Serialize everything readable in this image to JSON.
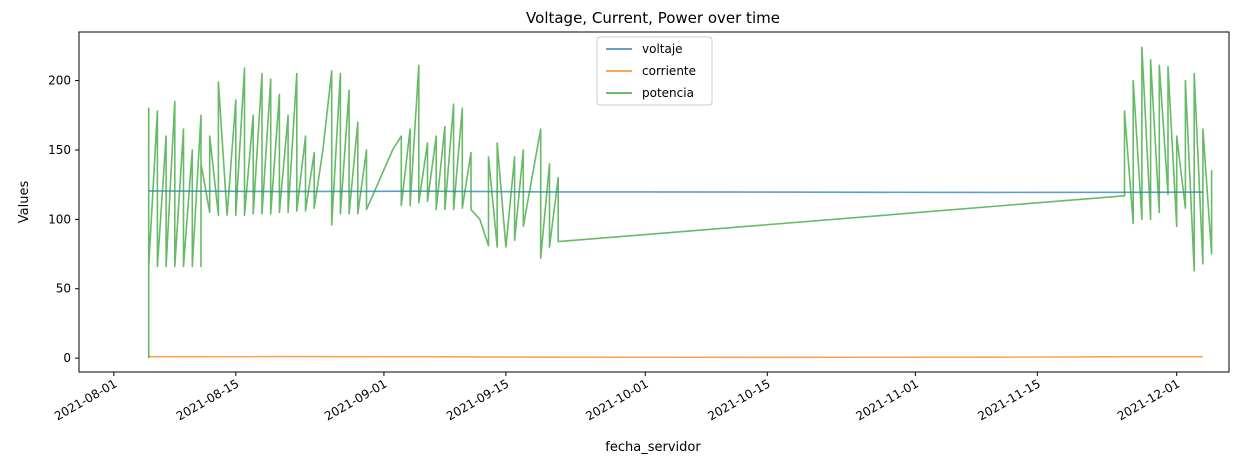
{
  "chart_data": {
    "type": "line",
    "title": "Voltage, Current, Power over time",
    "xlabel": "fecha_servidor",
    "ylabel": "Values",
    "xlim": [
      "2021-07-28",
      "2021-12-07"
    ],
    "ylim": [
      -10,
      235
    ],
    "x_ticks": [
      "2021-08-01",
      "2021-08-15",
      "2021-09-01",
      "2021-09-15",
      "2021-10-01",
      "2021-10-15",
      "2021-11-01",
      "2021-11-15",
      "2021-12-01"
    ],
    "y_ticks": [
      0,
      50,
      100,
      150,
      200
    ],
    "grid": false,
    "legend_position": "top-center",
    "series": [
      {
        "name": "voltaje",
        "color": "#1f77b4",
        "points": [
          [
            "2021-08-05",
            120.5
          ],
          [
            "2021-08-20",
            120.0
          ],
          [
            "2021-09-05",
            120.3
          ],
          [
            "2021-09-20",
            119.8
          ],
          [
            "2021-10-15",
            119.6
          ],
          [
            "2021-11-10",
            119.4
          ],
          [
            "2021-11-26",
            119.5
          ],
          [
            "2021-12-04",
            119.6
          ]
        ]
      },
      {
        "name": "corriente",
        "color": "#ff7f0e",
        "points": [
          [
            "2021-08-05",
            1.0
          ],
          [
            "2021-08-20",
            1.1
          ],
          [
            "2021-09-05",
            1.0
          ],
          [
            "2021-09-20",
            0.7
          ],
          [
            "2021-10-15",
            0.6
          ],
          [
            "2021-11-10",
            0.7
          ],
          [
            "2021-11-26",
            1.0
          ],
          [
            "2021-12-04",
            1.0
          ]
        ]
      },
      {
        "name": "potencia",
        "color": "#2ca02c",
        "points": [
          [
            "2021-08-05",
            0
          ],
          [
            "2021-08-05",
            180
          ],
          [
            "2021-08-05",
            66
          ],
          [
            "2021-08-06",
            178
          ],
          [
            "2021-08-06",
            66
          ],
          [
            "2021-08-07",
            160
          ],
          [
            "2021-08-07",
            66
          ],
          [
            "2021-08-08",
            185
          ],
          [
            "2021-08-08",
            66
          ],
          [
            "2021-08-09",
            165
          ],
          [
            "2021-08-09",
            66
          ],
          [
            "2021-08-10",
            150
          ],
          [
            "2021-08-10",
            66
          ],
          [
            "2021-08-11",
            175
          ],
          [
            "2021-08-11",
            66
          ],
          [
            "2021-08-11",
            140
          ],
          [
            "2021-08-12",
            105
          ],
          [
            "2021-08-12",
            160
          ],
          [
            "2021-08-13",
            103
          ],
          [
            "2021-08-13",
            199
          ],
          [
            "2021-08-14",
            103
          ],
          [
            "2021-08-15",
            186
          ],
          [
            "2021-08-15",
            103
          ],
          [
            "2021-08-16",
            209
          ],
          [
            "2021-08-16",
            103
          ],
          [
            "2021-08-17",
            175
          ],
          [
            "2021-08-17",
            104
          ],
          [
            "2021-08-18",
            205
          ],
          [
            "2021-08-18",
            104
          ],
          [
            "2021-08-19",
            201
          ],
          [
            "2021-08-19",
            104
          ],
          [
            "2021-08-20",
            190
          ],
          [
            "2021-08-20",
            105
          ],
          [
            "2021-08-21",
            175
          ],
          [
            "2021-08-21",
            105
          ],
          [
            "2021-08-22",
            205
          ],
          [
            "2021-08-22",
            106
          ],
          [
            "2021-08-23",
            160
          ],
          [
            "2021-08-23",
            106
          ],
          [
            "2021-08-24",
            148
          ],
          [
            "2021-08-24",
            108
          ],
          [
            "2021-08-25",
            150
          ],
          [
            "2021-08-26",
            207
          ],
          [
            "2021-08-26",
            96
          ],
          [
            "2021-08-27",
            205
          ],
          [
            "2021-08-27",
            104
          ],
          [
            "2021-08-28",
            193
          ],
          [
            "2021-08-28",
            104
          ],
          [
            "2021-08-29",
            170
          ],
          [
            "2021-08-29",
            104
          ],
          [
            "2021-08-30",
            150
          ],
          [
            "2021-08-30",
            107
          ],
          [
            "2021-09-02",
            150
          ],
          [
            "2021-09-03",
            160
          ],
          [
            "2021-09-03",
            110
          ],
          [
            "2021-09-04",
            165
          ],
          [
            "2021-09-04",
            110
          ],
          [
            "2021-09-05",
            211
          ],
          [
            "2021-09-05",
            112
          ],
          [
            "2021-09-06",
            155
          ],
          [
            "2021-09-06",
            113
          ],
          [
            "2021-09-07",
            160
          ],
          [
            "2021-09-07",
            107
          ],
          [
            "2021-09-08",
            167
          ],
          [
            "2021-09-08",
            107
          ],
          [
            "2021-09-09",
            183
          ],
          [
            "2021-09-09",
            107
          ],
          [
            "2021-09-10",
            180
          ],
          [
            "2021-09-10",
            108
          ],
          [
            "2021-09-11",
            148
          ],
          [
            "2021-09-11",
            107
          ],
          [
            "2021-09-12",
            100
          ],
          [
            "2021-09-13",
            81
          ],
          [
            "2021-09-13",
            145
          ],
          [
            "2021-09-14",
            80
          ],
          [
            "2021-09-14",
            155
          ],
          [
            "2021-09-15",
            80
          ],
          [
            "2021-09-16",
            145
          ],
          [
            "2021-09-16",
            85
          ],
          [
            "2021-09-17",
            150
          ],
          [
            "2021-09-17",
            95
          ],
          [
            "2021-09-19",
            165
          ],
          [
            "2021-09-19",
            72
          ],
          [
            "2021-09-20",
            140
          ],
          [
            "2021-09-20",
            80
          ],
          [
            "2021-09-21",
            130
          ],
          [
            "2021-09-21",
            84
          ],
          [
            "2021-11-25",
            117
          ],
          [
            "2021-11-25",
            178
          ],
          [
            "2021-11-26",
            97
          ],
          [
            "2021-11-26",
            200
          ],
          [
            "2021-11-27",
            100
          ],
          [
            "2021-11-27",
            224
          ],
          [
            "2021-11-28",
            100
          ],
          [
            "2021-11-28",
            215
          ],
          [
            "2021-11-29",
            105
          ],
          [
            "2021-11-29",
            211
          ],
          [
            "2021-11-30",
            118
          ],
          [
            "2021-11-30",
            210
          ],
          [
            "2021-12-01",
            95
          ],
          [
            "2021-12-01",
            160
          ],
          [
            "2021-12-02",
            108
          ],
          [
            "2021-12-02",
            200
          ],
          [
            "2021-12-03",
            63
          ],
          [
            "2021-12-03",
            205
          ],
          [
            "2021-12-04",
            68
          ],
          [
            "2021-12-04",
            165
          ],
          [
            "2021-12-05",
            75
          ],
          [
            "2021-12-05",
            135
          ],
          [
            "2021-12-05",
            118
          ]
        ]
      }
    ]
  }
}
